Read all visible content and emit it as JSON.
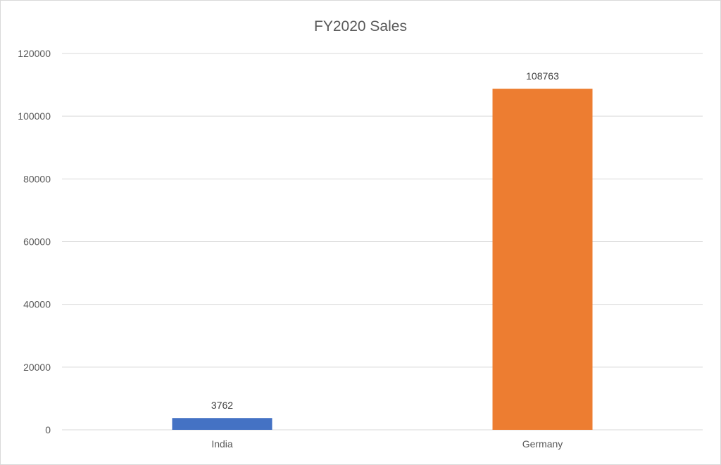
{
  "chart_data": {
    "type": "bar",
    "title": "FY2020 Sales",
    "categories": [
      "India",
      "Germany"
    ],
    "values": [
      3762,
      108763
    ],
    "data_labels": [
      "3762",
      "108763"
    ],
    "colors": [
      "#4472C4",
      "#ED7D31"
    ],
    "ylim": [
      0,
      120000
    ],
    "yticks": [
      "0",
      "20000",
      "40000",
      "60000",
      "80000",
      "100000",
      "120000"
    ],
    "xlabel": "",
    "ylabel": "",
    "grid": true,
    "legend": "none"
  }
}
